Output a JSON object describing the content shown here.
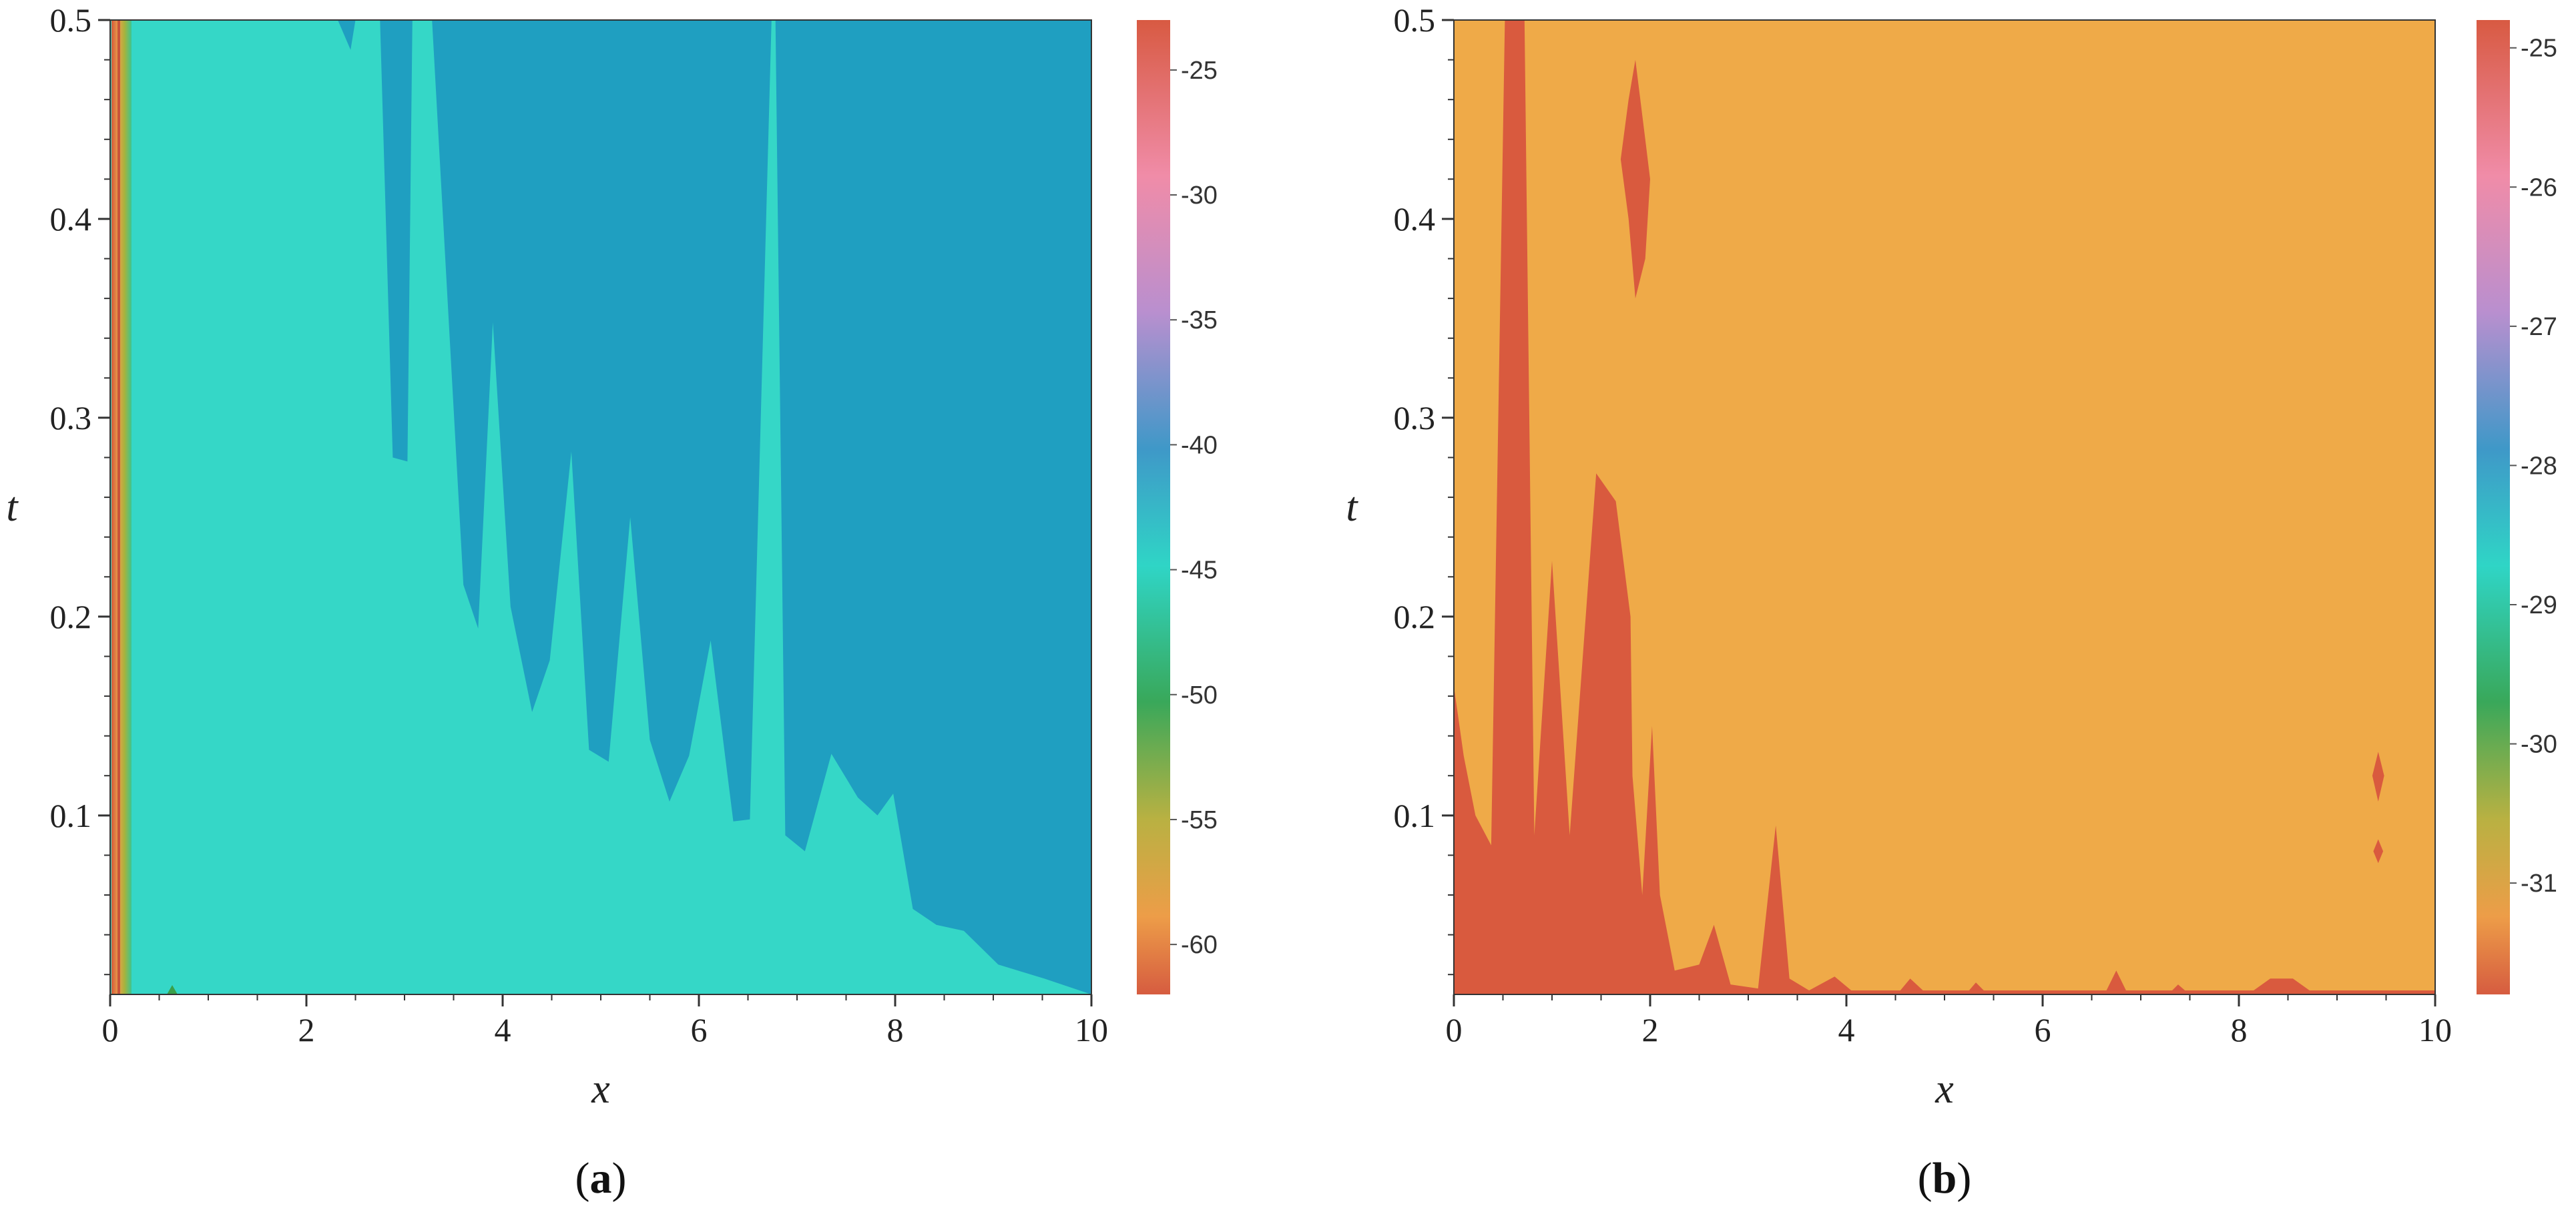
{
  "chart_data": [
    {
      "type": "heatmap",
      "panel_label": "a",
      "xlabel": "x",
      "ylabel": "t",
      "xlim": [
        0,
        10
      ],
      "ylim": [
        0.01,
        0.5
      ],
      "xticks": [
        0,
        2,
        4,
        6,
        8,
        10
      ],
      "yticks": [
        0.1,
        0.2,
        0.3,
        0.4,
        0.5
      ],
      "colorbar": {
        "range": [
          -62,
          -23
        ],
        "ticks": [
          -25,
          -30,
          -35,
          -40,
          -45,
          -50,
          -55,
          -60
        ]
      },
      "regions": [
        {
          "level": "cyan",
          "value": -43,
          "color": "#35d7c7",
          "extent": "background"
        },
        {
          "level": "blue",
          "value": -38,
          "color": "#1f9fc1",
          "boundary": [
            [
              2.32,
              0.5
            ],
            [
              2.45,
              0.485
            ],
            [
              2.5,
              0.5
            ],
            [
              2.75,
              0.5
            ],
            [
              2.88,
              0.28
            ],
            [
              3.03,
              0.278
            ],
            [
              3.08,
              0.5
            ],
            [
              3.28,
              0.5
            ],
            [
              3.6,
              0.216
            ],
            [
              3.75,
              0.194
            ],
            [
              3.9,
              0.348
            ],
            [
              4.08,
              0.205
            ],
            [
              4.3,
              0.152
            ],
            [
              4.48,
              0.178
            ],
            [
              4.7,
              0.283
            ],
            [
              4.88,
              0.133
            ],
            [
              5.08,
              0.127
            ],
            [
              5.3,
              0.25
            ],
            [
              5.5,
              0.138
            ],
            [
              5.7,
              0.107
            ],
            [
              5.9,
              0.13
            ],
            [
              6.12,
              0.188
            ],
            [
              6.35,
              0.097
            ],
            [
              6.52,
              0.098
            ],
            [
              6.74,
              0.5
            ],
            [
              6.78,
              0.5
            ],
            [
              6.88,
              0.09
            ],
            [
              7.08,
              0.082
            ],
            [
              7.35,
              0.131
            ],
            [
              7.62,
              0.109
            ],
            [
              7.82,
              0.1
            ],
            [
              7.98,
              0.111
            ],
            [
              8.18,
              0.053
            ],
            [
              8.42,
              0.045
            ],
            [
              8.7,
              0.042
            ],
            [
              9.05,
              0.025
            ],
            [
              9.52,
              0.018
            ],
            [
              10.0,
              0.01
            ],
            [
              10.0,
              0.5
            ]
          ]
        }
      ]
    },
    {
      "type": "heatmap",
      "panel_label": "b",
      "xlabel": "x",
      "ylabel": "t",
      "xlim": [
        0,
        10
      ],
      "ylim": [
        0.01,
        0.5
      ],
      "xticks": [
        0,
        2,
        4,
        6,
        8,
        10
      ],
      "yticks": [
        0.1,
        0.2,
        0.3,
        0.4,
        0.5
      ],
      "colorbar": {
        "range": [
          -31.8,
          -24.8
        ],
        "ticks": [
          -25,
          -26,
          -27,
          -28,
          -29,
          -30,
          -31
        ]
      },
      "regions": [
        {
          "level": "orange",
          "value": -31.3,
          "color": "#efaa48",
          "extent": "background"
        },
        {
          "level": "red",
          "value": -31.7,
          "color": "#d95a3e",
          "boundary": [
            [
              0.0,
              0.01
            ],
            [
              0.0,
              0.165
            ],
            [
              0.1,
              0.13
            ],
            [
              0.22,
              0.1
            ],
            [
              0.38,
              0.085
            ],
            [
              0.52,
              0.5
            ],
            [
              0.72,
              0.5
            ],
            [
              0.82,
              0.09
            ],
            [
              1.0,
              0.228
            ],
            [
              1.18,
              0.09
            ],
            [
              1.45,
              0.272
            ],
            [
              1.65,
              0.258
            ],
            [
              1.8,
              0.2
            ],
            [
              1.82,
              0.12
            ],
            [
              1.92,
              0.06
            ],
            [
              2.02,
              0.145
            ],
            [
              2.1,
              0.06
            ],
            [
              2.25,
              0.022
            ],
            [
              2.5,
              0.025
            ],
            [
              2.65,
              0.045
            ],
            [
              2.82,
              0.015
            ],
            [
              3.1,
              0.013
            ],
            [
              3.28,
              0.095
            ],
            [
              3.42,
              0.018
            ],
            [
              3.62,
              0.012
            ],
            [
              3.88,
              0.019
            ],
            [
              4.05,
              0.012
            ],
            [
              4.55,
              0.012
            ],
            [
              4.65,
              0.018
            ],
            [
              4.78,
              0.012
            ],
            [
              5.25,
              0.012
            ],
            [
              5.32,
              0.016
            ],
            [
              5.4,
              0.012
            ],
            [
              6.65,
              0.012
            ],
            [
              6.75,
              0.022
            ],
            [
              6.85,
              0.012
            ],
            [
              7.32,
              0.012
            ],
            [
              7.38,
              0.015
            ],
            [
              7.45,
              0.012
            ],
            [
              8.15,
              0.012
            ],
            [
              8.32,
              0.018
            ],
            [
              8.55,
              0.018
            ],
            [
              8.72,
              0.012
            ],
            [
              10.0,
              0.012
            ],
            [
              10.0,
              0.01
            ]
          ]
        },
        {
          "level": "red",
          "value": -31.7,
          "color": "#d95a3e",
          "boundary": [
            [
              1.85,
              0.48
            ],
            [
              1.95,
              0.44
            ],
            [
              2.0,
              0.42
            ],
            [
              1.95,
              0.38
            ],
            [
              1.85,
              0.36
            ],
            [
              1.78,
              0.4
            ],
            [
              1.7,
              0.43
            ],
            [
              1.78,
              0.46
            ]
          ]
        },
        {
          "level": "red",
          "value": -31.7,
          "color": "#d95a3e",
          "boundary": [
            [
              9.42,
              0.132
            ],
            [
              9.48,
              0.12
            ],
            [
              9.42,
              0.107
            ],
            [
              9.36,
              0.12
            ]
          ]
        },
        {
          "level": "red",
          "value": -31.7,
          "color": "#d95a3e",
          "boundary": [
            [
              9.42,
              0.088
            ],
            [
              9.47,
              0.082
            ],
            [
              9.42,
              0.076
            ],
            [
              9.37,
              0.082
            ]
          ]
        }
      ]
    }
  ]
}
